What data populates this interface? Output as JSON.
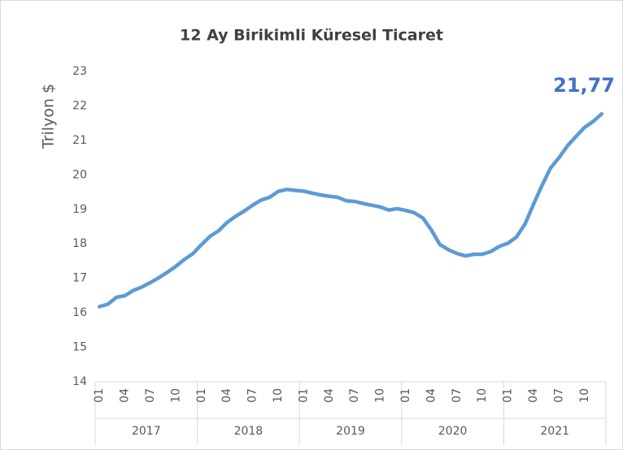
{
  "chart_data": {
    "type": "line",
    "title": "12 Ay Birikimli Küresel Ticaret",
    "y_label": "Trilyon $",
    "categories": [
      "01",
      null,
      null,
      "04",
      null,
      null,
      "07",
      null,
      null,
      "10",
      null,
      null,
      "01",
      null,
      null,
      "04",
      null,
      null,
      "07",
      null,
      null,
      "10",
      null,
      null,
      "01",
      null,
      null,
      "04",
      null,
      null,
      "07",
      null,
      null,
      "10",
      null,
      null,
      "01",
      null,
      null,
      "04",
      null,
      null,
      "07",
      null,
      null,
      "10",
      null,
      null,
      "01",
      null,
      null,
      "04",
      null,
      null,
      "07",
      null,
      null,
      "10",
      null,
      null
    ],
    "year_labels": [
      "2017",
      "2018",
      "2019",
      "2020",
      "2021"
    ],
    "values": [
      16.18,
      16.25,
      16.45,
      16.5,
      16.65,
      16.75,
      16.88,
      17.02,
      17.18,
      17.35,
      17.55,
      17.72,
      17.98,
      18.22,
      18.38,
      18.62,
      18.8,
      18.95,
      19.12,
      19.27,
      19.35,
      19.52,
      19.58,
      19.55,
      19.53,
      19.47,
      19.42,
      19.38,
      19.35,
      19.25,
      19.23,
      19.17,
      19.12,
      19.07,
      18.98,
      19.02,
      18.97,
      18.9,
      18.75,
      18.4,
      17.98,
      17.83,
      17.72,
      17.65,
      17.7,
      17.7,
      17.78,
      17.93,
      18.02,
      18.2,
      18.58,
      19.15,
      19.7,
      20.2,
      20.5,
      20.85,
      21.12,
      21.38,
      21.55,
      21.77
    ],
    "value_labels": [
      null,
      null,
      null,
      null,
      null,
      null,
      null,
      null,
      null,
      null,
      null,
      null,
      null,
      null,
      null,
      null,
      null,
      null,
      null,
      null,
      null,
      null,
      null,
      null,
      null,
      null,
      null,
      null,
      null,
      null,
      null,
      null,
      null,
      null,
      null,
      null,
      null,
      null,
      null,
      null,
      null,
      null,
      null,
      null,
      null,
      null,
      null,
      null,
      null,
      null,
      null,
      null,
      null,
      null,
      null,
      null,
      null,
      null,
      null,
      "21,77"
    ],
    "color": "#5b9bd5",
    "label_color": "#4472c4",
    "ylim": [
      14,
      23
    ],
    "yticks": [
      14,
      15,
      16,
      17,
      18,
      19,
      20,
      21,
      22,
      23
    ]
  }
}
